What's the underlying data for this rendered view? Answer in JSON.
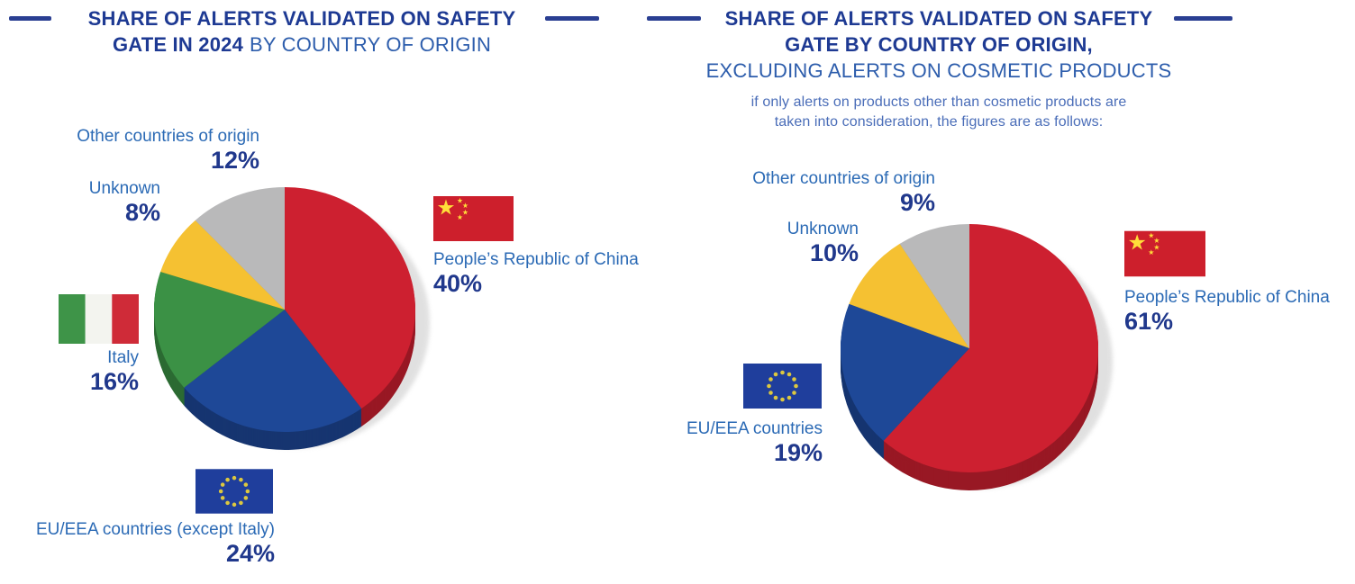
{
  "colors": {
    "background": "#ffffff",
    "title_navy": "#1e3a93",
    "title_blue": "#2d5dac",
    "subtitle_blue": "#4a6db8",
    "label_blue": "#2b6ab5",
    "pct_navy": "#20388c",
    "rule_navy": "#2a3f92",
    "pie_red": "#cd2030",
    "pie_blue": "#1e4897",
    "pie_green": "#3b9145",
    "pie_yellow": "#f5c132",
    "pie_gray": "#b9b9ba",
    "shadow_gray": "#d4d4d4",
    "eu_flag_blue": "#1f3e9c",
    "eu_star_yellow": "#ddc83f",
    "china_flag_red": "#cd1f2c",
    "china_star_yellow": "#ffde39",
    "italy_green": "#3e9448",
    "italy_white": "#f3f4ef",
    "italy_red": "#cf2b38"
  },
  "headers": {
    "left": {
      "line1": "SHARE OF ALERTS VALIDATED ON SAFETY",
      "line2_bold": "GATE IN 2024",
      "line2_rest": "BY COUNTRY OF ORIGIN"
    },
    "right": {
      "line1": "SHARE OF ALERTS VALIDATED ON SAFETY",
      "line2_bold": "GATE BY COUNTRY OF ORIGIN,",
      "line3": "EXCLUDING ALERTS ON COSMETIC PRODUCTS",
      "subtitle_line1": "if only alerts on products other than cosmetic products are",
      "subtitle_line2": "taken into consideration, the figures are as follows:"
    }
  },
  "chart_data": [
    {
      "type": "pie",
      "title": "Share of alerts validated on Safety Gate in 2024 by country of origin",
      "start_angle_deg": 0,
      "direction": "clockwise",
      "labels_layout": "callouts around pie with flags",
      "style": "3d",
      "slices": [
        {
          "label": "People’s Republic of China",
          "value": 40,
          "pct": "40%",
          "color": "#cd2030",
          "flag": "china"
        },
        {
          "label": "EU/EEA countries (except Italy)",
          "value": 24,
          "pct": "24%",
          "color": "#1e4897",
          "flag": "eu"
        },
        {
          "label": "Italy",
          "value": 16,
          "pct": "16%",
          "color": "#3b9145",
          "flag": "italy"
        },
        {
          "label": "Unknown",
          "value": 8,
          "pct": "8%",
          "color": "#f5c132"
        },
        {
          "label": "Other countries of origin",
          "value": 12,
          "pct": "12%",
          "color": "#b9b9ba"
        }
      ]
    },
    {
      "type": "pie",
      "title": "Share of alerts validated on Safety Gate by country of origin, excluding alerts on cosmetic products",
      "start_angle_deg": 0,
      "direction": "clockwise",
      "labels_layout": "callouts around pie with flags",
      "style": "3d",
      "slices": [
        {
          "label": "People’s Republic of China",
          "value": 61,
          "pct": "61%",
          "color": "#cd2030",
          "flag": "china"
        },
        {
          "label": "EU/EEA countries",
          "value": 19,
          "pct": "19%",
          "color": "#1e4897",
          "flag": "eu"
        },
        {
          "label": "Unknown",
          "value": 10,
          "pct": "10%",
          "color": "#f5c132"
        },
        {
          "label": "Other countries of origin",
          "value": 9,
          "pct": "9%",
          "color": "#b9b9ba"
        }
      ]
    }
  ]
}
